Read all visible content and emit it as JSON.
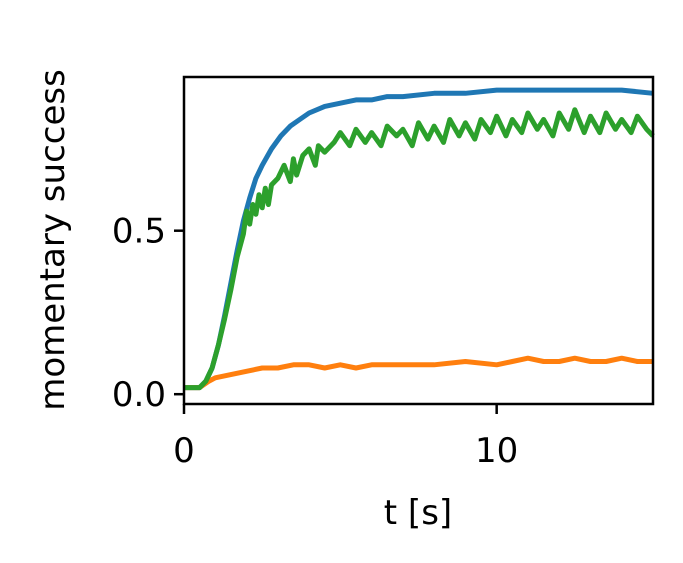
{
  "chart_data": {
    "type": "line",
    "title": "",
    "xlabel": "t [s]",
    "ylabel": "momentary success",
    "xlim": [
      0,
      15
    ],
    "ylim": [
      -0.03,
      0.97
    ],
    "xticks": [
      0,
      10
    ],
    "xtick_labels": [
      "0",
      "10"
    ],
    "yticks": [
      0.0,
      0.5
    ],
    "ytick_labels": [
      "0.0",
      "0.5"
    ],
    "grid": false,
    "legend": "none",
    "series": [
      {
        "color": "#1f77b4",
        "x": [
          0,
          0.3,
          0.5,
          0.7,
          0.9,
          1.1,
          1.3,
          1.5,
          1.7,
          1.9,
          2.1,
          2.3,
          2.5,
          2.8,
          3.1,
          3.4,
          3.7,
          4.0,
          4.5,
          5.0,
          5.5,
          6.0,
          6.5,
          7.0,
          8.0,
          9.0,
          10.0,
          11.0,
          12.0,
          13.0,
          14.0,
          15.0
        ],
        "y": [
          0.02,
          0.02,
          0.02,
          0.04,
          0.08,
          0.15,
          0.24,
          0.34,
          0.44,
          0.53,
          0.6,
          0.66,
          0.7,
          0.75,
          0.79,
          0.82,
          0.84,
          0.86,
          0.88,
          0.89,
          0.9,
          0.9,
          0.91,
          0.91,
          0.92,
          0.92,
          0.93,
          0.93,
          0.93,
          0.93,
          0.93,
          0.92
        ]
      },
      {
        "color": "#ff7f0e",
        "x": [
          0,
          0.5,
          0.8,
          1.0,
          1.5,
          2.0,
          2.5,
          3.0,
          3.5,
          4.0,
          4.5,
          5.0,
          5.5,
          6.0,
          7.0,
          8.0,
          9.0,
          10.0,
          10.5,
          11.0,
          11.5,
          12.0,
          12.5,
          13.0,
          13.5,
          14.0,
          14.5,
          15.0
        ],
        "y": [
          0.02,
          0.02,
          0.04,
          0.05,
          0.06,
          0.07,
          0.08,
          0.08,
          0.09,
          0.09,
          0.08,
          0.09,
          0.08,
          0.09,
          0.09,
          0.09,
          0.1,
          0.09,
          0.1,
          0.11,
          0.1,
          0.1,
          0.11,
          0.1,
          0.1,
          0.11,
          0.1,
          0.1
        ]
      },
      {
        "color": "#2ca02c",
        "x": [
          0,
          0.3,
          0.5,
          0.7,
          0.9,
          1.1,
          1.3,
          1.5,
          1.7,
          1.9,
          2.0,
          2.1,
          2.2,
          2.3,
          2.4,
          2.5,
          2.6,
          2.7,
          2.8,
          3.0,
          3.2,
          3.4,
          3.5,
          3.6,
          3.8,
          4.0,
          4.2,
          4.3,
          4.5,
          4.8,
          5.0,
          5.3,
          5.5,
          5.8,
          6.0,
          6.3,
          6.5,
          6.8,
          7.0,
          7.3,
          7.5,
          7.8,
          8.0,
          8.3,
          8.5,
          8.8,
          9.0,
          9.3,
          9.5,
          9.8,
          10.0,
          10.3,
          10.5,
          10.8,
          11.0,
          11.3,
          11.5,
          11.8,
          12.0,
          12.3,
          12.5,
          12.8,
          13.0,
          13.3,
          13.5,
          13.8,
          14.0,
          14.3,
          14.5,
          14.8,
          15.0
        ],
        "y": [
          0.02,
          0.02,
          0.02,
          0.04,
          0.08,
          0.15,
          0.23,
          0.32,
          0.42,
          0.49,
          0.56,
          0.52,
          0.58,
          0.55,
          0.61,
          0.57,
          0.63,
          0.58,
          0.64,
          0.66,
          0.7,
          0.65,
          0.72,
          0.67,
          0.73,
          0.75,
          0.7,
          0.76,
          0.74,
          0.77,
          0.8,
          0.76,
          0.81,
          0.77,
          0.8,
          0.76,
          0.82,
          0.79,
          0.81,
          0.76,
          0.83,
          0.78,
          0.82,
          0.77,
          0.84,
          0.79,
          0.83,
          0.78,
          0.84,
          0.8,
          0.85,
          0.79,
          0.84,
          0.8,
          0.86,
          0.81,
          0.84,
          0.79,
          0.86,
          0.81,
          0.87,
          0.8,
          0.85,
          0.8,
          0.86,
          0.81,
          0.84,
          0.8,
          0.85,
          0.81,
          0.79
        ]
      }
    ]
  }
}
